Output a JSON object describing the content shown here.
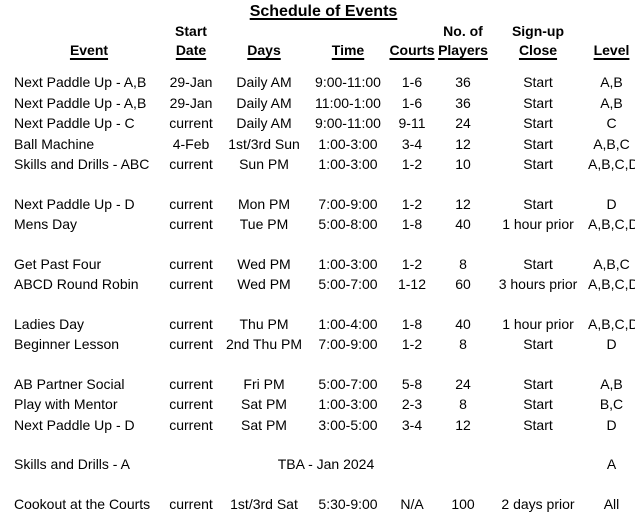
{
  "title": "Schedule of Events",
  "columns": [
    {
      "line1": "",
      "line2": "Event"
    },
    {
      "line1": "Start",
      "line2": "Date"
    },
    {
      "line1": "",
      "line2": "Days"
    },
    {
      "line1": "",
      "line2": "Time"
    },
    {
      "line1": "",
      "line2": "Courts"
    },
    {
      "line1": "No. of",
      "line2": "Players"
    },
    {
      "line1": "Sign-up",
      "line2": "Close"
    },
    {
      "line1": "",
      "line2": "Level"
    }
  ],
  "rows": [
    {
      "type": "data",
      "event": "Next Paddle Up - A,B",
      "start_date": "29-Jan",
      "days": "Daily AM",
      "time": "9:00-11:00",
      "courts": "1-6",
      "players": "36",
      "signup_close": "Start",
      "level": "A,B"
    },
    {
      "type": "data",
      "event": "Next Paddle Up - A,B",
      "start_date": "29-Jan",
      "days": "Daily AM",
      "time": "11:00-1:00",
      "courts": "1-6",
      "players": "36",
      "signup_close": "Start",
      "level": "A,B"
    },
    {
      "type": "data",
      "event": "Next Paddle Up - C",
      "start_date": "current",
      "days": "Daily AM",
      "time": "9:00-11:00",
      "courts": "9-11",
      "players": "24",
      "signup_close": "Start",
      "level": "C"
    },
    {
      "type": "data",
      "event": "Ball Machine",
      "start_date": "4-Feb",
      "days": "1st/3rd Sun",
      "time": "1:00-3:00",
      "courts": "3-4",
      "players": "12",
      "signup_close": "Start",
      "level": "A,B,C"
    },
    {
      "type": "data",
      "event": "Skills and Drills - ABC",
      "start_date": "current",
      "days": "Sun PM",
      "time": "1:00-3:00",
      "courts": "1-2",
      "players": "10",
      "signup_close": "Start",
      "level": "A,B,C,D"
    },
    {
      "type": "spacer"
    },
    {
      "type": "data",
      "event": "Next Paddle Up - D",
      "start_date": "current",
      "days": "Mon PM",
      "time": "7:00-9:00",
      "courts": "1-2",
      "players": "12",
      "signup_close": "Start",
      "level": "D"
    },
    {
      "type": "data",
      "event": "Mens Day",
      "start_date": "current",
      "days": "Tue PM",
      "time": "5:00-8:00",
      "courts": "1-8",
      "players": "40",
      "signup_close": "1 hour prior",
      "level": "A,B,C,D"
    },
    {
      "type": "spacer"
    },
    {
      "type": "data",
      "event": "Get Past Four",
      "start_date": "current",
      "days": "Wed PM",
      "time": "1:00-3:00",
      "courts": "1-2",
      "players": "8",
      "signup_close": "Start",
      "level": "A,B,C"
    },
    {
      "type": "data",
      "event": "ABCD Round Robin",
      "start_date": "current",
      "days": "Wed PM",
      "time": "5:00-7:00",
      "courts": "1-12",
      "players": "60",
      "signup_close": "3 hours prior",
      "level": "A,B,C,D"
    },
    {
      "type": "spacer"
    },
    {
      "type": "data",
      "event": "Ladies Day",
      "start_date": "current",
      "days": "Thu PM",
      "time": "1:00-4:00",
      "courts": "1-8",
      "players": "40",
      "signup_close": "1 hour prior",
      "level": "A,B,C,D"
    },
    {
      "type": "data",
      "event": "Beginner Lesson",
      "start_date": "current",
      "days": "2nd Thu PM",
      "time": "7:00-9:00",
      "courts": "1-2",
      "players": "8",
      "signup_close": "Start",
      "level": "D"
    },
    {
      "type": "spacer"
    },
    {
      "type": "data",
      "event": "AB Partner Social",
      "start_date": "current",
      "days": "Fri PM",
      "time": "5:00-7:00",
      "courts": "5-8",
      "players": "24",
      "signup_close": "Start",
      "level": "A,B"
    },
    {
      "type": "data",
      "event": "Play with Mentor",
      "start_date": "current",
      "days": "Sat PM",
      "time": "1:00-3:00",
      "courts": "2-3",
      "players": "8",
      "signup_close": "Start",
      "level": "B,C"
    },
    {
      "type": "data",
      "event": "Next Paddle Up - D",
      "start_date": "current",
      "days": "Sat PM",
      "time": "3:00-5:00",
      "courts": "3-4",
      "players": "12",
      "signup_close": "Start",
      "level": "D"
    },
    {
      "type": "spacer"
    },
    {
      "type": "tba",
      "event": "Skills and Drills - A",
      "note": "TBA - Jan 2024",
      "level": "A"
    },
    {
      "type": "spacer"
    },
    {
      "type": "data",
      "event": "Cookout at the Courts",
      "start_date": "current",
      "days": "1st/3rd Sat",
      "time": "5:30-9:00",
      "courts": "N/A",
      "players": "100",
      "signup_close": "2 days prior",
      "level": "All"
    }
  ],
  "colors": {
    "text": "#000000",
    "background": "#ffffff"
  }
}
